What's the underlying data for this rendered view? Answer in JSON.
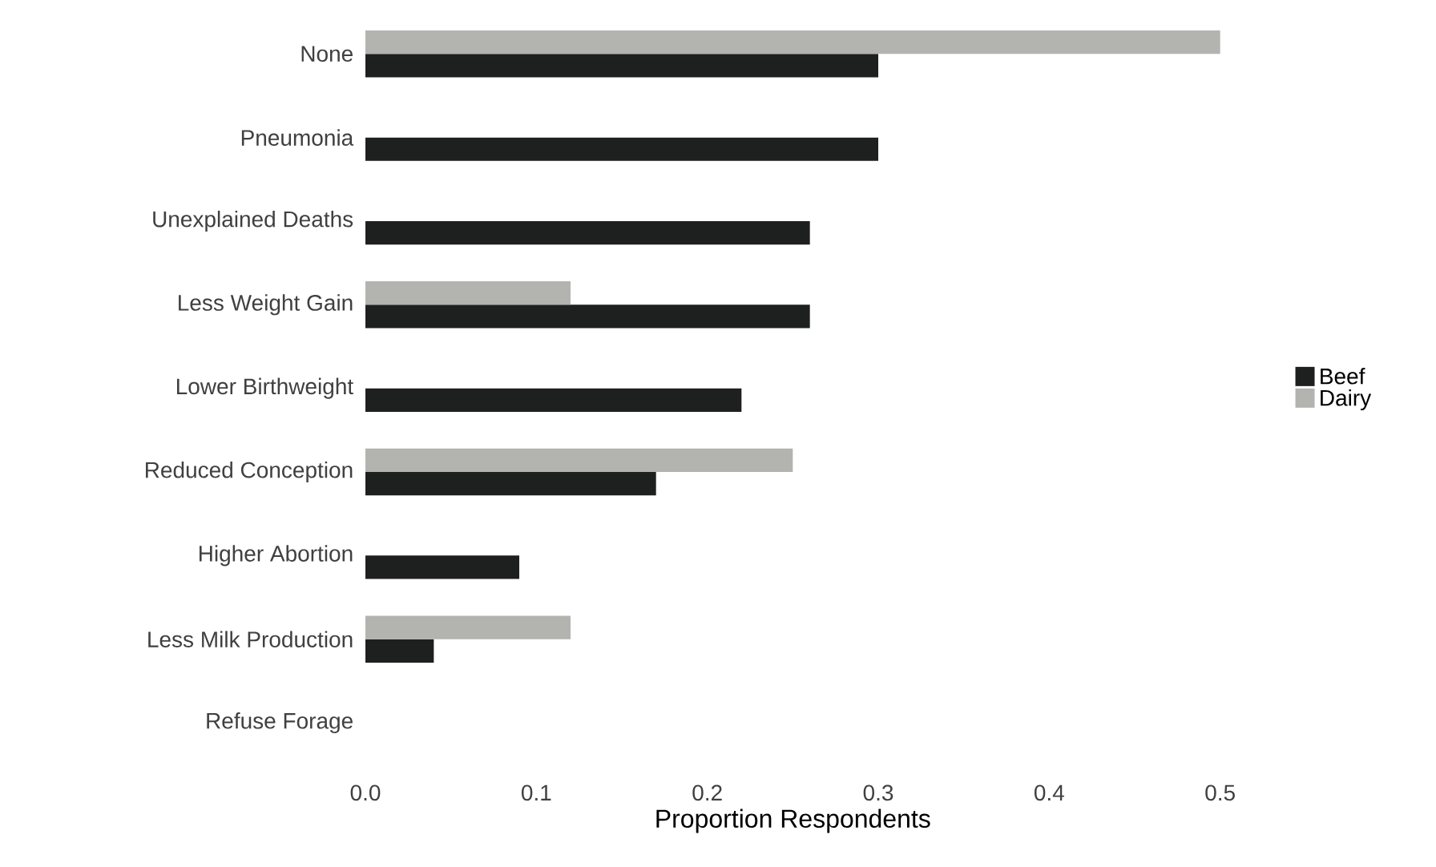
{
  "chart_data": {
    "type": "bar",
    "orientation": "horizontal",
    "xlabel": "Proportion Respondents",
    "categories": [
      "None",
      "Pneumonia",
      "Unexplained Deaths",
      "Less Weight Gain",
      "Lower Birthweight",
      "Reduced Conception",
      "Higher Abortion",
      "Less Milk Production",
      "Refuse Forage"
    ],
    "series": [
      {
        "name": "Beef",
        "color": "#1e1f1f",
        "values": [
          0.3,
          0.3,
          0.26,
          0.26,
          0.22,
          0.17,
          0.09,
          0.04,
          null
        ]
      },
      {
        "name": "Dairy",
        "color": "#b3b3b0",
        "values": [
          0.5,
          null,
          null,
          0.12,
          null,
          0.25,
          null,
          0.12,
          null
        ]
      }
    ],
    "xlim": [
      0,
      0.5
    ],
    "xticks": [
      {
        "value": 0,
        "label": "0.0"
      },
      {
        "value": 0.1,
        "label": "0.1"
      },
      {
        "value": 0.2,
        "label": "0.2"
      },
      {
        "value": 0.3,
        "label": "0.3"
      },
      {
        "value": 0.4,
        "label": "0.4"
      },
      {
        "value": 0.5,
        "label": "0.5"
      }
    ],
    "legend": "right"
  }
}
